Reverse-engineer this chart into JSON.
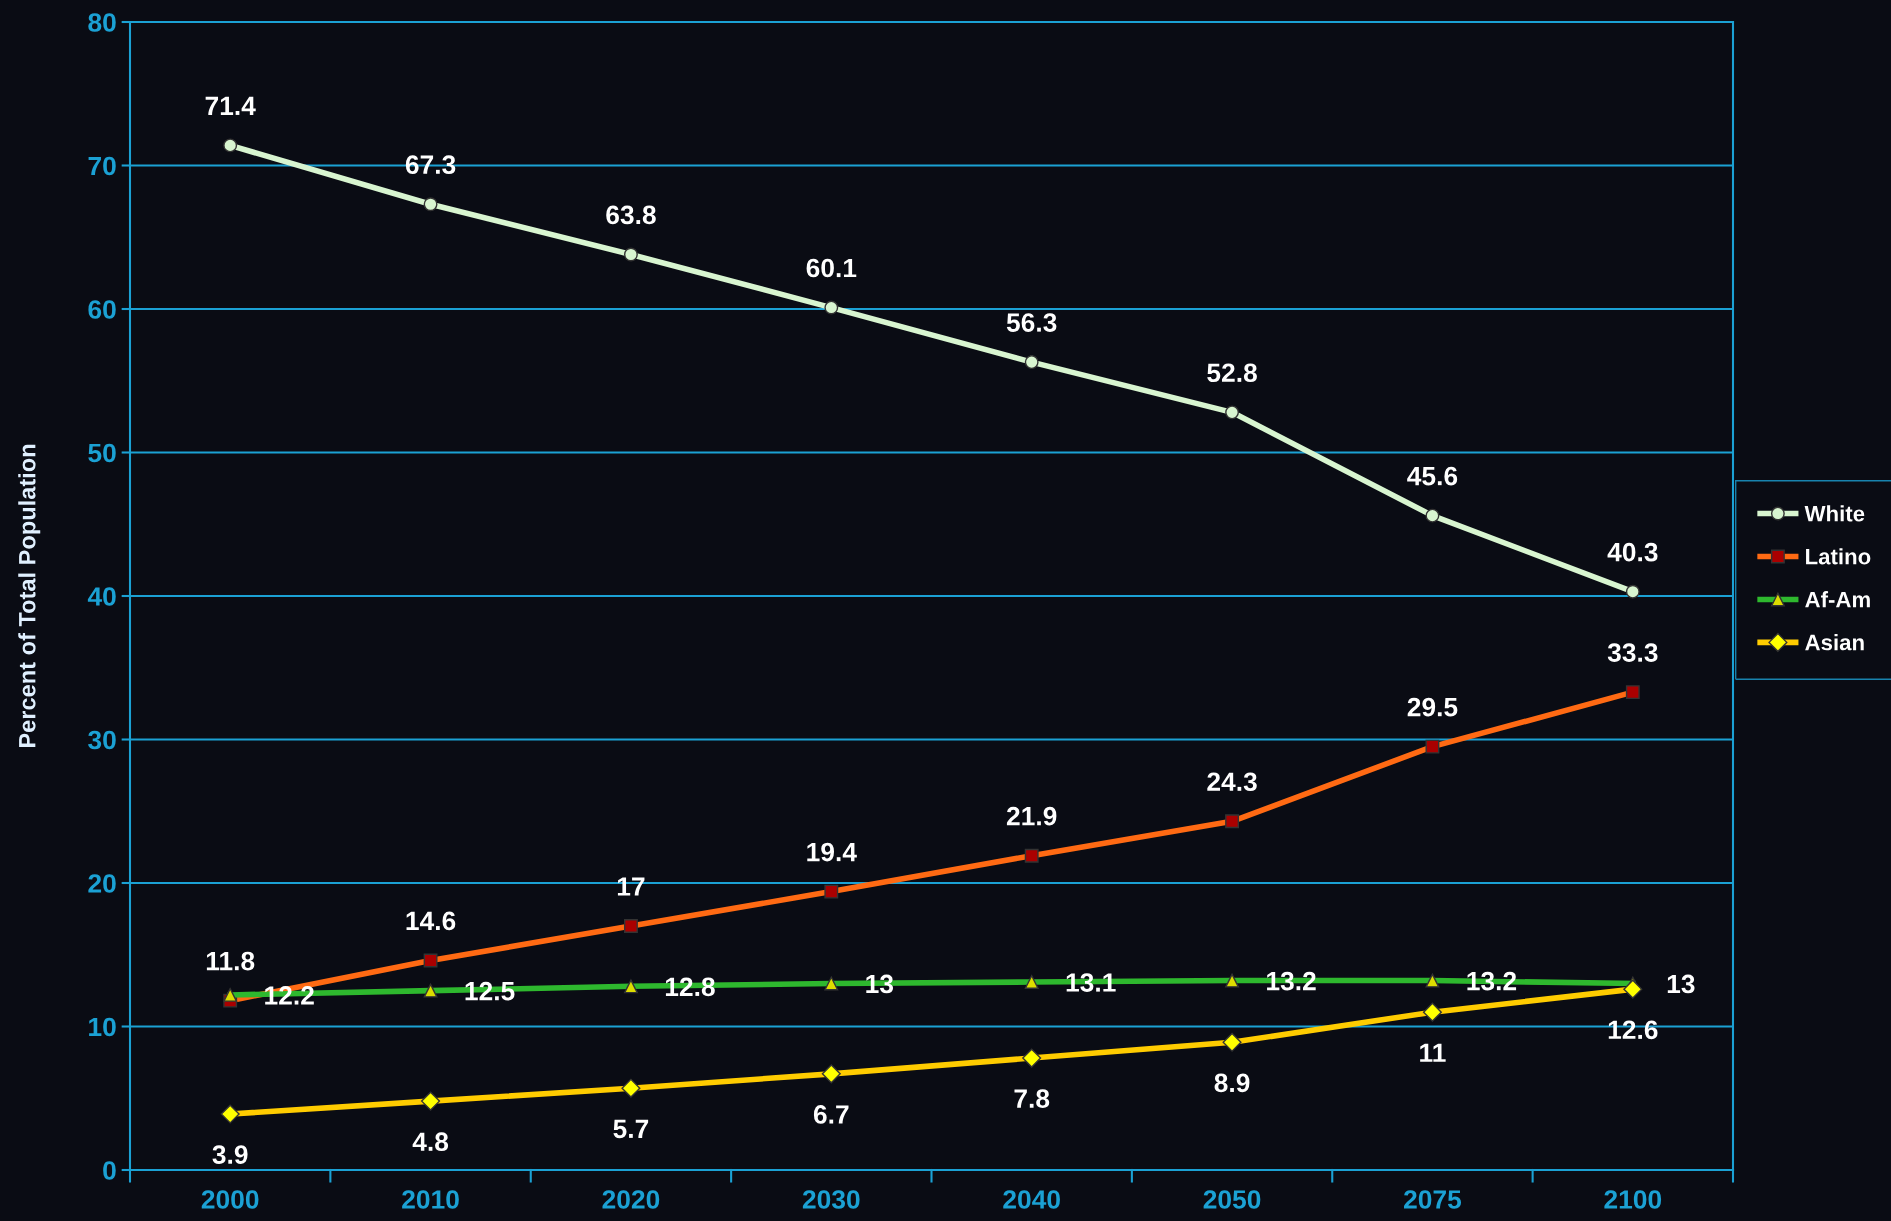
{
  "chart_data": {
    "type": "line",
    "ylabel": "Percent of Total Population",
    "categories": [
      "2000",
      "2010",
      "2020",
      "2030",
      "2040",
      "2050",
      "2075",
      "2100"
    ],
    "series": [
      {
        "name": "White",
        "color": "#d8f5d0",
        "marker": "circle",
        "values": [
          71.4,
          67.3,
          63.8,
          60.1,
          56.3,
          52.8,
          45.6,
          40.3
        ]
      },
      {
        "name": "Latino",
        "color": "#ff6a13",
        "marker": "square",
        "values": [
          11.8,
          14.6,
          17,
          19.4,
          21.9,
          24.3,
          29.5,
          33.3
        ]
      },
      {
        "name": "Af-Am",
        "color": "#2eb82e",
        "marker": "triangle",
        "values": [
          12.2,
          12.5,
          12.8,
          13,
          13.1,
          13.2,
          13.2,
          13
        ]
      },
      {
        "name": "Asian",
        "color": "#ffcc00",
        "marker": "diamond",
        "values": [
          3.9,
          4.8,
          5.7,
          6.7,
          7.8,
          8.9,
          11,
          12.6
        ]
      }
    ],
    "ylim": [
      0,
      80
    ],
    "yticks": [
      0,
      10,
      20,
      30,
      40,
      50,
      60,
      70,
      80
    ],
    "grid": "y",
    "legend": "right",
    "data_labels": true,
    "line_style": "solid"
  }
}
